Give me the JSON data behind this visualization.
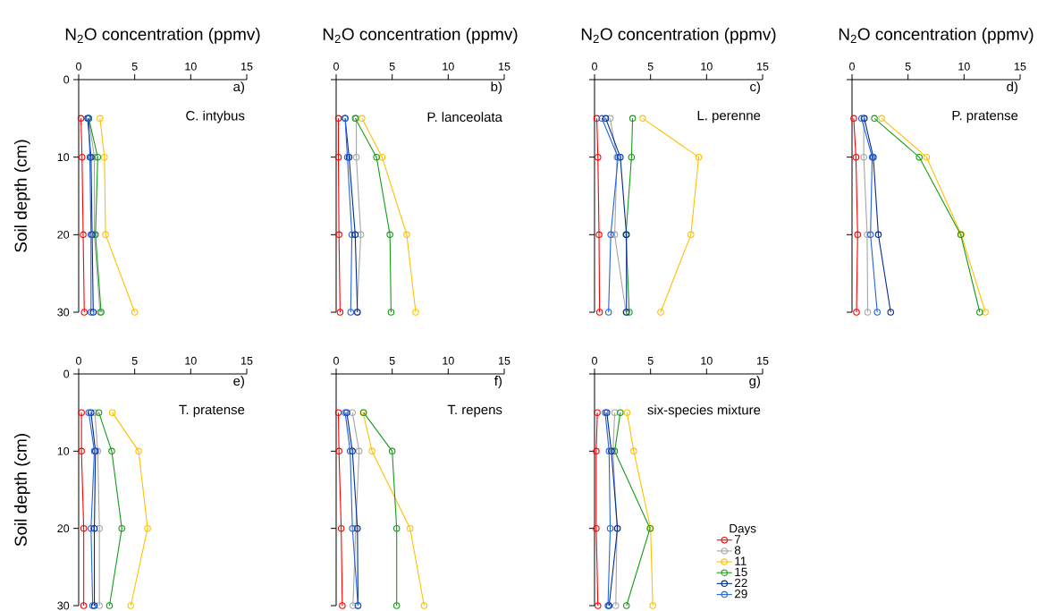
{
  "chart_data": [
    {
      "type": "line",
      "xlabel": "N$_{2}$O concentration (ppmv)",
      "ylabel": "Soil depth (cm)",
      "annotations": [
        "a)",
        "C. intybus"
      ],
      "xlim": [
        0,
        15
      ],
      "xticks": [
        0,
        5,
        10,
        15
      ],
      "ylim": [
        30,
        0
      ],
      "yticks": [
        0,
        10,
        20,
        30
      ],
      "marker": "circle",
      "series": [
        {
          "color": "#ff0000",
          "x": [
            0.2,
            0.3,
            0.4,
            0.5
          ],
          "values": [
            5,
            10,
            20,
            30
          ]
        },
        {
          "color": "#a6a6a6",
          "x": [
            0.9,
            1.4,
            1.4,
            1.9
          ],
          "values": [
            5,
            10,
            20,
            30
          ]
        },
        {
          "color": "#ffc000",
          "x": [
            1.9,
            2.3,
            2.4,
            5.0
          ],
          "values": [
            5,
            10,
            20,
            30
          ]
        },
        {
          "color": "#169b16",
          "x": [
            0.9,
            1.7,
            1.5,
            2.0
          ],
          "values": [
            5,
            10,
            20,
            30
          ]
        },
        {
          "color": "#002b8f",
          "x": [
            0.8,
            1.1,
            1.2,
            1.3
          ],
          "values": [
            5,
            10,
            20,
            30
          ]
        },
        {
          "color": "#2563e0",
          "x": [
            0.9,
            1.0,
            1.1,
            1.1
          ],
          "values": [
            5,
            10,
            20,
            30
          ]
        }
      ]
    },
    {
      "type": "line",
      "xlabel": "N$_{2}$O concentration (ppmv)",
      "annotations": [
        "b)",
        "P. lanceolata"
      ],
      "xlim": [
        0,
        15
      ],
      "xticks": [
        0,
        5,
        10,
        15
      ],
      "ylim": [
        30,
        0
      ],
      "yticks": [
        0,
        10,
        20,
        30
      ],
      "tick_labels": "x",
      "marker": "circle",
      "series": [
        {
          "color": "#ff0000",
          "x": [
            0.2,
            0.2,
            0.25,
            0.35
          ],
          "values": [
            5,
            10,
            20,
            30
          ]
        },
        {
          "color": "#a6a6a6",
          "x": [
            1.8,
            1.8,
            2.2,
            1.85
          ],
          "values": [
            5,
            10,
            20,
            30
          ]
        },
        {
          "color": "#ffc000",
          "x": [
            2.3,
            4.1,
            6.3,
            7.1
          ],
          "values": [
            5,
            10,
            20,
            30
          ]
        },
        {
          "color": "#169b16",
          "x": [
            1.7,
            3.6,
            4.8,
            4.9
          ],
          "values": [
            5,
            10,
            20,
            30
          ]
        },
        {
          "color": "#002b8f",
          "x": [
            0.8,
            1.15,
            1.7,
            1.9
          ],
          "values": [
            5,
            10,
            20,
            30
          ]
        },
        {
          "color": "#2563e0",
          "x": [
            0.8,
            1.0,
            1.4,
            1.3
          ],
          "values": [
            5,
            10,
            20,
            30
          ]
        }
      ]
    },
    {
      "type": "line",
      "xlabel": "N$_{2}$O concentration (ppmv)",
      "annotations": [
        "c)",
        "L. perenne"
      ],
      "xlim": [
        0,
        15
      ],
      "xticks": [
        0,
        5,
        10,
        15
      ],
      "ylim": [
        30,
        0
      ],
      "yticks": [
        0,
        10,
        20,
        30
      ],
      "tick_labels": "x",
      "marker": "circle",
      "series": [
        {
          "color": "#ff0000",
          "x": [
            0.2,
            0.3,
            0.4,
            0.45
          ],
          "values": [
            5,
            10,
            20,
            30
          ]
        },
        {
          "color": "#a6a6a6",
          "x": [
            1.4,
            2.0,
            1.8,
            2.8
          ],
          "values": [
            5,
            10,
            20,
            30
          ]
        },
        {
          "color": "#ffc000",
          "x": [
            4.3,
            9.3,
            8.6,
            5.9
          ],
          "values": [
            5,
            10,
            20,
            30
          ]
        },
        {
          "color": "#169b16",
          "x": [
            3.4,
            3.3,
            2.8,
            3.1
          ],
          "values": [
            5,
            10,
            20,
            30
          ]
        },
        {
          "color": "#002b8f",
          "x": [
            1.0,
            2.3,
            2.85,
            2.85
          ],
          "values": [
            5,
            10,
            20,
            30
          ]
        },
        {
          "color": "#2563e0",
          "x": [
            0.65,
            2.1,
            1.45,
            1.25
          ],
          "values": [
            5,
            10,
            20,
            30
          ]
        }
      ]
    },
    {
      "type": "line",
      "xlabel": "N$_{2}$O concentration (ppmv)",
      "annotations": [
        "d)",
        "P. pratense"
      ],
      "xlim": [
        0,
        15
      ],
      "xticks": [
        0,
        5,
        10,
        15
      ],
      "ylim": [
        30,
        0
      ],
      "yticks": [
        0,
        10,
        20,
        30
      ],
      "tick_labels": "x",
      "marker": "circle",
      "series": [
        {
          "color": "#ff0000",
          "x": [
            0.15,
            0.35,
            0.5,
            0.4
          ],
          "values": [
            5,
            10,
            20,
            30
          ]
        },
        {
          "color": "#a6a6a6",
          "x": [
            1.05,
            1.05,
            1.35,
            1.4
          ],
          "values": [
            5,
            10,
            20,
            30
          ]
        },
        {
          "color": "#ffc000",
          "x": [
            2.65,
            6.65,
            9.75,
            11.9
          ],
          "values": [
            5,
            10,
            20,
            30
          ]
        },
        {
          "color": "#169b16",
          "x": [
            2.0,
            6.0,
            9.7,
            11.4
          ],
          "values": [
            5,
            10,
            20,
            30
          ]
        },
        {
          "color": "#002b8f",
          "x": [
            1.1,
            1.9,
            2.35,
            3.45
          ],
          "values": [
            5,
            10,
            20,
            30
          ]
        },
        {
          "color": "#2563e0",
          "x": [
            0.85,
            1.8,
            1.65,
            2.25
          ],
          "values": [
            5,
            10,
            20,
            30
          ]
        }
      ]
    },
    {
      "type": "line",
      "ylabel": "Soil depth (cm)",
      "annotations": [
        "e)",
        "T. pratense"
      ],
      "xlim": [
        0,
        15
      ],
      "xticks": [
        0,
        5,
        10,
        15
      ],
      "ylim": [
        30,
        0
      ],
      "yticks": [
        0,
        10,
        20,
        30
      ],
      "marker": "circle",
      "series": [
        {
          "color": "#ff0000",
          "x": [
            0.25,
            0.25,
            0.45,
            0.45
          ],
          "values": [
            5,
            10,
            20,
            30
          ]
        },
        {
          "color": "#a6a6a6",
          "x": [
            1.45,
            1.7,
            1.85,
            1.85
          ],
          "values": [
            5,
            10,
            20,
            30
          ]
        },
        {
          "color": "#ffc000",
          "x": [
            3.0,
            5.35,
            6.15,
            4.65
          ],
          "values": [
            5,
            10,
            20,
            30
          ]
        },
        {
          "color": "#169b16",
          "x": [
            1.8,
            2.95,
            3.85,
            2.75
          ],
          "values": [
            5,
            10,
            20,
            30
          ]
        },
        {
          "color": "#002b8f",
          "x": [
            1.1,
            1.5,
            1.4,
            1.4
          ],
          "values": [
            5,
            10,
            20,
            30
          ]
        },
        {
          "color": "#2563e0",
          "x": [
            0.9,
            1.4,
            1.1,
            1.25
          ],
          "values": [
            5,
            10,
            20,
            30
          ]
        }
      ]
    },
    {
      "type": "line",
      "annotations": [
        "f)",
        "T. repens"
      ],
      "xlim": [
        0,
        15
      ],
      "xticks": [
        0,
        5,
        10,
        15
      ],
      "ylim": [
        30,
        0
      ],
      "yticks": [
        0,
        10,
        20,
        30
      ],
      "tick_labels": "x",
      "marker": "circle",
      "series": [
        {
          "color": "#ff0000",
          "x": [
            0.2,
            0.25,
            0.45,
            0.55
          ],
          "values": [
            5,
            10,
            20,
            30
          ]
        },
        {
          "color": "#a6a6a6",
          "x": [
            1.45,
            2.05,
            1.75,
            1.5
          ],
          "values": [
            5,
            10,
            20,
            30
          ]
        },
        {
          "color": "#ffc000",
          "x": [
            2.4,
            3.2,
            6.6,
            7.85
          ],
          "values": [
            5,
            10,
            20,
            30
          ]
        },
        {
          "color": "#169b16",
          "x": [
            2.45,
            5.0,
            5.4,
            5.4
          ],
          "values": [
            5,
            10,
            20,
            30
          ]
        },
        {
          "color": "#002b8f",
          "x": [
            0.95,
            1.45,
            1.9,
            1.95
          ],
          "values": [
            5,
            10,
            20,
            30
          ]
        },
        {
          "color": "#2563e0",
          "x": [
            0.8,
            1.25,
            1.45,
            1.95
          ],
          "values": [
            5,
            10,
            20,
            30
          ]
        }
      ]
    },
    {
      "type": "line",
      "annotations": [
        "g)",
        "six-species mixture"
      ],
      "legend_title": "Days",
      "legend": "bottom right",
      "xlim": [
        0,
        15
      ],
      "xticks": [
        0,
        5,
        10,
        15
      ],
      "ylim": [
        30,
        0
      ],
      "yticks": [
        0,
        10,
        20,
        30
      ],
      "tick_labels": "x",
      "marker": "circle",
      "series": [
        {
          "name": "7",
          "color": "#ff0000",
          "x": [
            0.25,
            0.15,
            0.15,
            0.3
          ],
          "values": [
            5,
            10,
            20,
            30
          ]
        },
        {
          "name": "8",
          "color": "#a6a6a6",
          "x": [
            1.8,
            1.65,
            2.0,
            1.9
          ],
          "values": [
            5,
            10,
            20,
            30
          ]
        },
        {
          "name": "11",
          "color": "#ffc000",
          "x": [
            2.9,
            3.5,
            5.0,
            5.2
          ],
          "values": [
            5,
            10,
            20,
            30
          ]
        },
        {
          "name": "15",
          "color": "#169b16",
          "x": [
            2.3,
            1.8,
            4.95,
            2.85
          ],
          "values": [
            5,
            10,
            20,
            30
          ]
        },
        {
          "name": "22",
          "color": "#002b8f",
          "x": [
            1.1,
            1.5,
            2.05,
            1.3
          ],
          "values": [
            5,
            10,
            20,
            30
          ]
        },
        {
          "name": "29",
          "color": "#2563e0",
          "x": [
            0.95,
            1.3,
            1.4,
            1.2
          ],
          "values": [
            5,
            10,
            20,
            30
          ]
        }
      ]
    }
  ]
}
